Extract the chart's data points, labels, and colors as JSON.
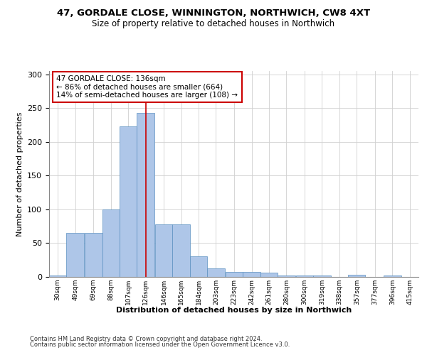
{
  "title1": "47, GORDALE CLOSE, WINNINGTON, NORTHWICH, CW8 4XT",
  "title2": "Size of property relative to detached houses in Northwich",
  "xlabel": "Distribution of detached houses by size in Northwich",
  "ylabel": "Number of detached properties",
  "footer1": "Contains HM Land Registry data © Crown copyright and database right 2024.",
  "footer2": "Contains public sector information licensed under the Open Government Licence v3.0.",
  "annotation_line1": "47 GORDALE CLOSE: 136sqm",
  "annotation_line2": "← 86% of detached houses are smaller (664)",
  "annotation_line3": "14% of semi-detached houses are larger (108) →",
  "property_size": 136,
  "bar_left_edges": [
    30,
    49,
    69,
    88,
    107,
    126,
    146,
    165,
    184,
    203,
    223,
    242,
    261,
    280,
    300,
    319,
    338,
    357,
    377,
    396,
    415
  ],
  "bar_heights": [
    2,
    65,
    65,
    100,
    223,
    243,
    78,
    78,
    30,
    13,
    7,
    7,
    6,
    2,
    2,
    2,
    0,
    3,
    0,
    2,
    0
  ],
  "bin_width": 19,
  "bar_color": "#aec6e8",
  "bar_edge_color": "#5a8fc0",
  "vline_color": "#cc0000",
  "vline_x": 136,
  "annotation_box_color": "#cc0000",
  "ylim": [
    0,
    305
  ],
  "yticks": [
    0,
    50,
    100,
    150,
    200,
    250,
    300
  ],
  "background_color": "#ffffff",
  "grid_color": "#d0d0d0"
}
